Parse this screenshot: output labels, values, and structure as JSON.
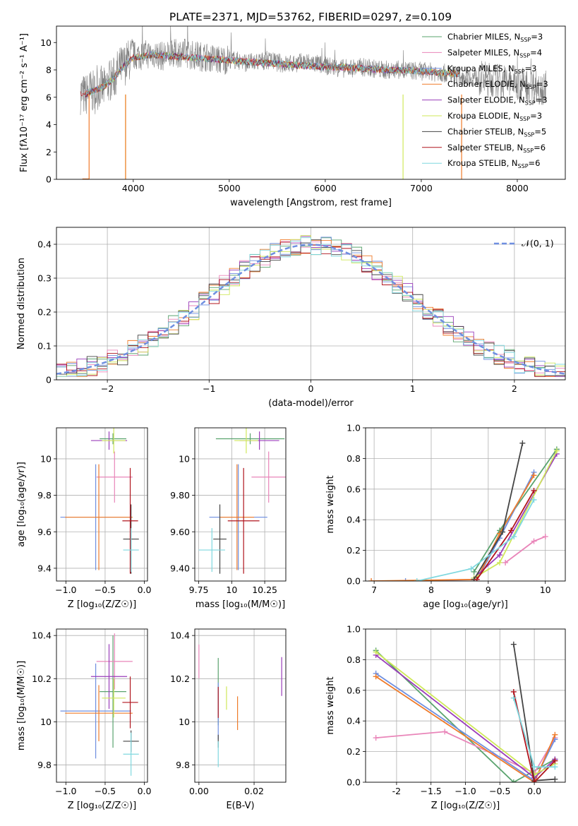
{
  "figure": {
    "title": "PLATE=2371, MJD=53762, FIBERID=0297, z=0.109"
  },
  "models": [
    {
      "name": "Chabrier MILES",
      "nssp": "3",
      "color": "#5aa36e"
    },
    {
      "name": "Salpeter MILES",
      "nssp": "4",
      "color": "#e985b9"
    },
    {
      "name": "Kroupa MILES",
      "nssp": "3",
      "color": "#6f8fe0"
    },
    {
      "name": "Chabrier ELODIE",
      "nssp": "3",
      "color": "#ef7b2a"
    },
    {
      "name": "Salpeter ELODIE",
      "nssp": "3",
      "color": "#9a3dba"
    },
    {
      "name": "Kroupa ELODIE",
      "nssp": "3",
      "color": "#cfe85a"
    },
    {
      "name": "Chabrier STELIB",
      "nssp": "5",
      "color": "#454545"
    },
    {
      "name": "Salpeter STELIB",
      "nssp": "6",
      "color": "#b0151e"
    },
    {
      "name": "Kroupa STELIB",
      "nssp": "6",
      "color": "#7fd8df"
    }
  ],
  "legend_nssp_prefix": "N",
  "legend_nssp_sub": "SSP",
  "chart_data": [
    {
      "id": "spectrum",
      "type": "line",
      "xlabel": "wavelength [Angstrom, rest frame]",
      "ylabel": "Flux [fλ10⁻¹⁷ erg cm⁻² s⁻¹ A⁻¹]",
      "xlim": [
        3200,
        8500
      ],
      "ylim": [
        0,
        11.2
      ],
      "xticks": [
        4000,
        5000,
        6000,
        7000,
        8000
      ],
      "yticks": [
        0,
        2,
        4,
        6,
        8,
        10
      ],
      "grid": false,
      "legend": "top-right",
      "series": [
        {
          "name": "data",
          "color": "#808080",
          "x": [
            3450,
            3500,
            3550,
            3600,
            3650,
            3700,
            3750,
            3800,
            3850,
            3900,
            3950,
            4000,
            4100,
            4200,
            4300,
            4400,
            4500,
            4600,
            4700,
            4800,
            4900,
            5000,
            5200,
            5400,
            5600,
            5800,
            6000,
            6200,
            6400,
            6600,
            6800,
            7000,
            7200,
            7400,
            7600,
            7800,
            8000,
            8200,
            8300
          ],
          "y": [
            6.3,
            6.1,
            6.5,
            6.3,
            6.8,
            6.6,
            7.2,
            7.4,
            8.1,
            8.3,
            8.7,
            9.0,
            9.1,
            9.2,
            9.0,
            9.1,
            9.3,
            9.1,
            9.0,
            8.9,
            8.7,
            8.8,
            8.5,
            8.7,
            8.4,
            8.6,
            8.3,
            8.1,
            8.2,
            8.0,
            8.0,
            7.9,
            7.8,
            7.6,
            7.4,
            7.2,
            7.0,
            6.8,
            6.7
          ]
        },
        {
          "name": "model",
          "color": "#ef7b2a",
          "x": [
            3450,
            3500,
            3550,
            3600,
            3700,
            3800,
            3900,
            4000,
            4200,
            4400,
            4600,
            4800,
            5000,
            5200,
            5400,
            5600,
            5800,
            6000,
            6200,
            6400,
            6600,
            6800,
            7000,
            7200,
            7400
          ],
          "y": [
            6.3,
            6.2,
            6.4,
            6.5,
            6.8,
            7.4,
            8.3,
            8.9,
            9.1,
            9.0,
            8.9,
            8.8,
            8.7,
            8.6,
            8.5,
            8.4,
            8.3,
            8.2,
            8.2,
            8.1,
            8.0,
            8.0,
            7.9,
            7.8,
            7.7
          ]
        }
      ]
    },
    {
      "id": "residuals",
      "type": "line",
      "xlabel": "(data-model)/error",
      "ylabel": "Normed distribution",
      "xlim": [
        -2.5,
        2.5
      ],
      "ylim": [
        0,
        0.45
      ],
      "xticks": [
        -2,
        -1,
        0,
        1,
        2
      ],
      "yticks": [
        0.0,
        0.1,
        0.2,
        0.3,
        0.4
      ],
      "grid": true,
      "legend": "top-right",
      "gaussian_label": "𝒩(0, 1)",
      "bin_width": 0.1,
      "series": [
        {
          "name": "Chabrier MILES",
          "bin_starts": [
            -2.5,
            -2.2,
            -1.9,
            -1.6,
            -1.3,
            -1.0,
            -0.7,
            -0.4,
            -0.1,
            0.2,
            0.5,
            0.8,
            1.1,
            1.4,
            1.7,
            2.0,
            2.3
          ],
          "values": [
            0.03,
            0.05,
            0.08,
            0.14,
            0.2,
            0.27,
            0.33,
            0.37,
            0.4,
            0.37,
            0.33,
            0.28,
            0.22,
            0.15,
            0.09,
            0.06,
            0.04
          ]
        }
      ]
    },
    {
      "id": "age_vs_Z",
      "type": "scatter",
      "xlabel": "Z [log₁₀(Z/Z☉)]",
      "ylabel": "age  [log₁₀(age/yr)]",
      "xlim": [
        -1.12,
        0.04
      ],
      "ylim": [
        9.33,
        10.17
      ],
      "xticks": [
        -1.0,
        -0.5,
        0.0
      ],
      "yticks": [
        9.4,
        9.6,
        9.8,
        10.0
      ],
      "grid": true
    },
    {
      "id": "age_vs_mass",
      "type": "scatter",
      "xlabel": "mass [log₁₀(M/M☉)]",
      "xlim": [
        9.72,
        10.41
      ],
      "ylim": [
        9.33,
        10.17
      ],
      "xticks": [
        9.75,
        10.0,
        10.25
      ],
      "yticks": [
        9.4,
        9.6,
        9.8,
        10.0
      ],
      "grid": true
    },
    {
      "id": "weight_vs_age",
      "type": "line",
      "xlabel": "age  [log₁₀(age/yr)]",
      "ylabel": "mass weight",
      "xlim": [
        6.85,
        10.35
      ],
      "ylim": [
        0,
        1.0
      ],
      "xticks": [
        7,
        8,
        9,
        10
      ],
      "yticks": [
        0.0,
        0.2,
        0.4,
        0.6,
        0.8,
        1.0
      ],
      "grid": true
    },
    {
      "id": "mass_vs_Z",
      "type": "scatter",
      "xlabel": "Z [log₁₀(Z/Z☉)]",
      "ylabel": "mass [log₁₀(M/M☉)]",
      "xlim": [
        -1.12,
        0.04
      ],
      "ylim": [
        9.72,
        10.43
      ],
      "xticks": [
        -1.0,
        -0.5,
        0.0
      ],
      "yticks": [
        9.8,
        10.0,
        10.2,
        10.4
      ],
      "grid": true
    },
    {
      "id": "mass_vs_ebv",
      "type": "scatter",
      "xlabel": "E(B-V)",
      "xlim": [
        -0.0015,
        0.0315
      ],
      "ylim": [
        9.72,
        10.43
      ],
      "xticks": [
        0.0,
        0.02
      ],
      "yticks": [
        9.8,
        10.0,
        10.2,
        10.4
      ],
      "grid": true
    },
    {
      "id": "weight_vs_Z",
      "type": "line",
      "xlabel": "Z [log₁₀(Z/Z☉)]",
      "ylabel": "mass weight",
      "xlim": [
        -2.45,
        0.45
      ],
      "ylim": [
        0,
        1.0
      ],
      "xticks": [
        -2.0,
        -1.5,
        -1.0,
        -0.5,
        0.0
      ],
      "yticks": [
        0.0,
        0.2,
        0.4,
        0.6,
        0.8,
        1.0
      ],
      "grid": true
    }
  ],
  "estimates": [
    {
      "age": 10.11,
      "age_err": 0.03,
      "Z": -0.4,
      "Z_err": 0.17,
      "mass": 10.14,
      "mass_err": 0.26,
      "ebv": 0.007,
      "ebv_err": 0.1
    },
    {
      "age": 9.9,
      "age_err": 0.14,
      "Z": -0.38,
      "Z_err": 0.23,
      "mass": 10.28,
      "mass_err": 0.13,
      "ebv": 0.0,
      "ebv_err": 0.12
    },
    {
      "age": 9.68,
      "age_err": 0.29,
      "Z": -0.62,
      "Z_err": 0.45,
      "mass": 10.05,
      "mass_err": 0.22,
      "ebv": 0.007,
      "ebv_err": 0.17
    },
    {
      "age": 9.68,
      "age_err": 0.29,
      "Z": -0.58,
      "Z_err": 0.43,
      "mass": 10.04,
      "mass_err": 0.13,
      "ebv": 0.014,
      "ebv_err": 0.12
    },
    {
      "age": 10.1,
      "age_err": 0.05,
      "Z": -0.45,
      "Z_err": 0.23,
      "mass": 10.21,
      "mass_err": 0.15,
      "ebv": 0.03,
      "ebv_err": 0.14
    },
    {
      "age": 10.1,
      "age_err": 0.07,
      "Z": -0.39,
      "Z_err": 0.15,
      "mass": 10.11,
      "mass_err": 0.09,
      "ebv": 0.01,
      "ebv_err": 0.12
    },
    {
      "age": 9.56,
      "age_err": 0.19,
      "Z": -0.17,
      "Z_err": 0.1,
      "mass": 9.91,
      "mass_err": 0.05,
      "ebv": 0.007,
      "ebv_err": 0.18
    },
    {
      "age": 9.66,
      "age_err": 0.29,
      "Z": -0.18,
      "Z_err": 0.1,
      "mass": 10.09,
      "mass_err": 0.12,
      "ebv": 0.007,
      "ebv_err": 0.1
    },
    {
      "age": 9.5,
      "age_err": 0.12,
      "Z": -0.17,
      "Z_err": 0.1,
      "mass": 9.85,
      "mass_err": 0.1,
      "ebv": 0.007,
      "ebv_err": 0.12
    }
  ],
  "weights_age": [
    [
      [
        8.75,
        0.06
      ],
      [
        9.2,
        0.33
      ],
      [
        10.2,
        0.86
      ]
    ],
    [
      [
        9.3,
        0.12
      ],
      [
        9.8,
        0.26
      ],
      [
        10.0,
        0.29
      ]
    ],
    [
      [
        7.55,
        0.0
      ],
      [
        8.8,
        0.01
      ],
      [
        9.2,
        0.28
      ],
      [
        9.8,
        0.71
      ]
    ],
    [
      [
        6.95,
        0.0
      ],
      [
        8.8,
        0.01
      ],
      [
        9.2,
        0.31
      ],
      [
        9.8,
        0.69
      ]
    ],
    [
      [
        8.75,
        0.02
      ],
      [
        9.2,
        0.17
      ],
      [
        10.2,
        0.83
      ]
    ],
    [
      [
        8.75,
        0.02
      ],
      [
        9.2,
        0.12
      ],
      [
        10.2,
        0.85
      ]
    ],
    [
      [
        8.75,
        0.01
      ],
      [
        9.25,
        0.32
      ],
      [
        9.6,
        0.9
      ]
    ],
    [
      [
        8.8,
        0.01
      ],
      [
        9.4,
        0.33
      ],
      [
        9.8,
        0.59
      ]
    ],
    [
      [
        7.75,
        0.0
      ],
      [
        8.7,
        0.08
      ],
      [
        9.45,
        0.29
      ],
      [
        9.8,
        0.53
      ]
    ]
  ],
  "weights_Z": [
    [
      [
        -2.3,
        0.86
      ],
      [
        -0.3,
        0.0
      ],
      [
        0.3,
        0.15
      ]
    ],
    [
      [
        -2.3,
        0.29
      ],
      [
        -1.3,
        0.33
      ],
      [
        0.0,
        0.06
      ],
      [
        0.3,
        0.29
      ]
    ],
    [
      [
        -2.3,
        0.71
      ],
      [
        0.0,
        0.01
      ],
      [
        0.3,
        0.28
      ]
    ],
    [
      [
        -2.3,
        0.69
      ],
      [
        0.0,
        0.0
      ],
      [
        0.3,
        0.31
      ]
    ],
    [
      [
        -2.3,
        0.83
      ],
      [
        0.0,
        0.03
      ],
      [
        0.3,
        0.15
      ]
    ],
    [
      [
        -2.3,
        0.85
      ],
      [
        0.0,
        0.05
      ],
      [
        0.3,
        0.12
      ]
    ],
    [
      [
        -0.3,
        0.9
      ],
      [
        0.0,
        0.01
      ],
      [
        0.3,
        0.02
      ]
    ],
    [
      [
        -0.3,
        0.59
      ],
      [
        0.0,
        0.0
      ],
      [
        0.3,
        0.14
      ]
    ],
    [
      [
        -0.3,
        0.55
      ],
      [
        0.0,
        0.1
      ],
      [
        0.3,
        0.1
      ]
    ]
  ]
}
